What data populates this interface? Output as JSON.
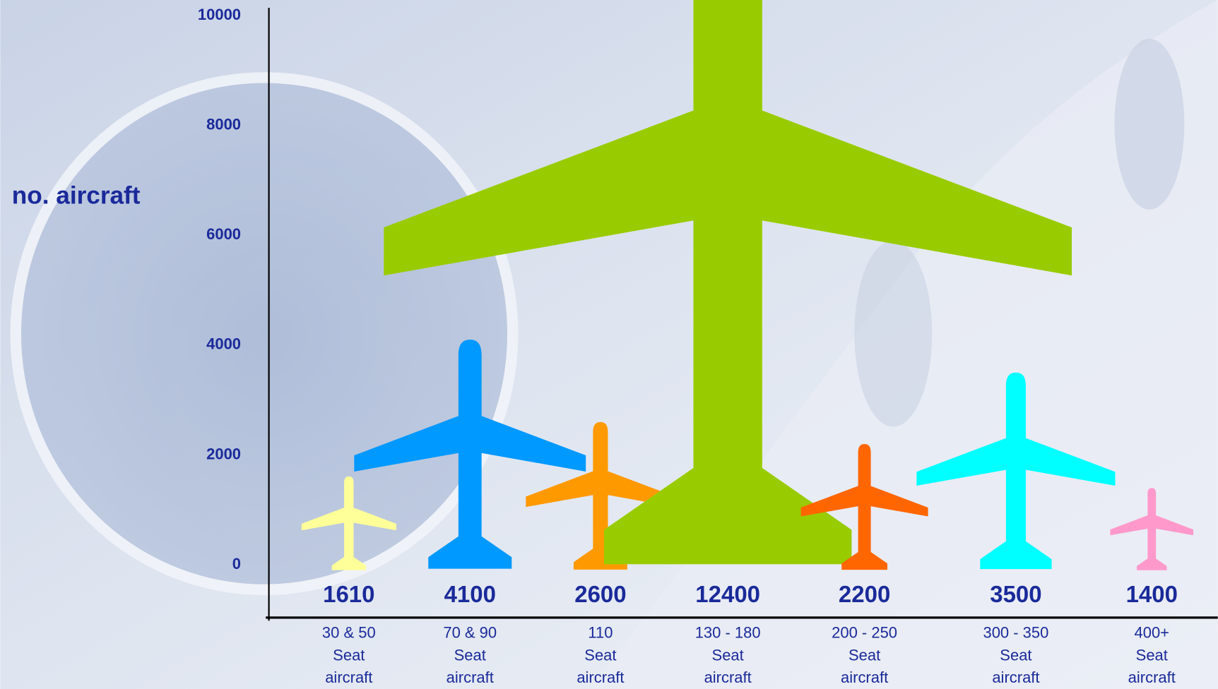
{
  "chart_data": {
    "type": "pictogram",
    "y_label": "no. aircraft",
    "categories": [
      "30 & 50\nSeat\naircraft",
      "70 & 90\nSeat\naircraft",
      "110\nSeat\naircraft",
      "130 - 180\nSeat\naircraft",
      "200 - 250\nSeat\naircraft",
      "300 - 350\nSeat\naircraft",
      "400+\nSeat\naircraft"
    ],
    "values": [
      1610,
      4100,
      2600,
      12400,
      2200,
      3500,
      1400
    ],
    "colors": [
      "#ffff99",
      "#0099ff",
      "#ff9900",
      "#99cc00",
      "#ff6600",
      "#00ffff",
      "#ff99cc"
    ],
    "ylim": [
      0,
      10000
    ],
    "yticks": [
      0,
      2000,
      4000,
      6000,
      8000,
      10000
    ]
  }
}
